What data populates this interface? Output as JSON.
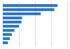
{
  "chart_data": {
    "type": "bar",
    "orientation": "horizontal",
    "categories": [
      null,
      null,
      null,
      null,
      null,
      null,
      null,
      null,
      null,
      null
    ],
    "values": [
      85,
      80,
      59,
      30,
      29,
      25,
      18,
      14,
      11,
      8
    ],
    "color": "#2876dd",
    "xlim": [
      0,
      100
    ],
    "xticks": [
      0,
      25,
      50,
      75,
      100
    ],
    "grid": true,
    "tick_labels": false
  }
}
